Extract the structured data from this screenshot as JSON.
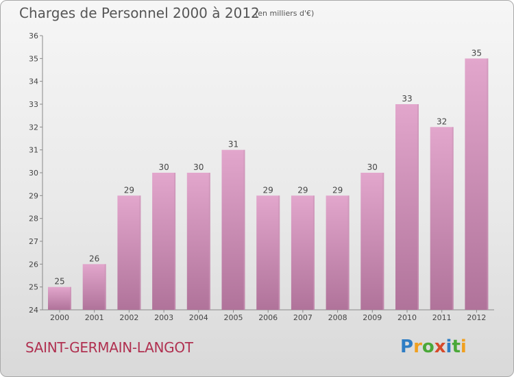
{
  "header": {
    "title": "Charges de Personnel 2000 à 2012",
    "subtitle": "(en milliers d'€)"
  },
  "footer": {
    "commune": "SAINT-GERMAIN-LANGOT",
    "logo_text": "Proxiti"
  },
  "colors": {
    "bar_top": "#e2a6cc",
    "bar_bottom": "#b0739a",
    "text": "#555555",
    "commune": "#b03050"
  },
  "chart_data": {
    "type": "bar",
    "title": "Charges de Personnel 2000 à 2012",
    "subtitle": "(en milliers d'€)",
    "categories": [
      "2000",
      "2001",
      "2002",
      "2003",
      "2004",
      "2005",
      "2006",
      "2007",
      "2008",
      "2009",
      "2010",
      "2011",
      "2012"
    ],
    "values": [
      25,
      26,
      29,
      30,
      30,
      31,
      29,
      29,
      29,
      30,
      33,
      32,
      35
    ],
    "ylim": [
      24,
      36
    ],
    "yticks": [
      24,
      25,
      26,
      27,
      28,
      29,
      30,
      31,
      32,
      33,
      34,
      35,
      36
    ],
    "grid": false,
    "legend": "none",
    "data_labels": true
  }
}
